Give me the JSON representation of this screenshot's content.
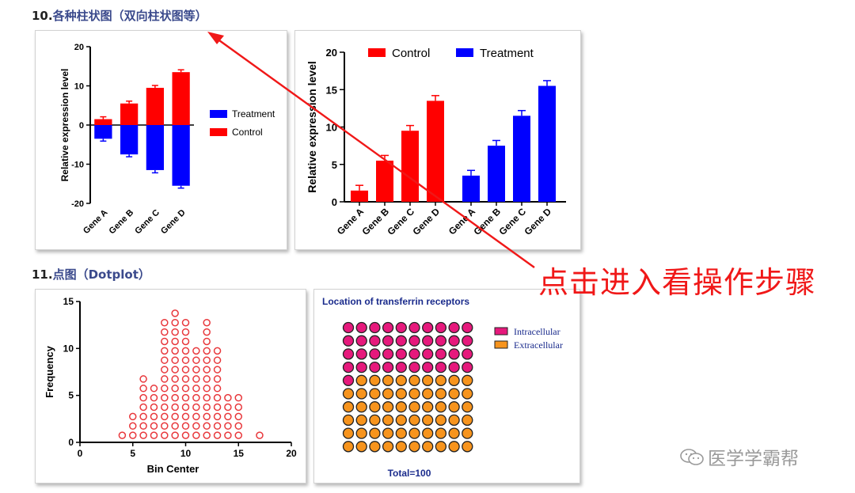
{
  "sections": {
    "s10": {
      "num": "10.",
      "label": "各种柱状图（双向柱状图等）"
    },
    "s11": {
      "num": "11.",
      "label": "点图（Dotplot）"
    }
  },
  "cta": {
    "text": "点击进入看操作步骤",
    "color": "#f01818"
  },
  "watermark": {
    "text": "医学学霸帮",
    "icon": "wechat-icon"
  },
  "colors": {
    "control": "#ff0000",
    "treatment": "#0000ff",
    "dot": "#e8383c",
    "intracellular": "#e6197c",
    "extracellular": "#f7941d",
    "title_blue": "#1a2b8c"
  },
  "chart_data": [
    {
      "type": "bar",
      "subtype": "diverging",
      "ylabel": "Relative expression level",
      "ylim": [
        -20,
        20
      ],
      "yticks": [
        "-20",
        "-10",
        "0",
        "10",
        "20"
      ],
      "categories": [
        "Gene A",
        "Gene B",
        "Gene C",
        "Gene D"
      ],
      "legend_position": "right",
      "series": [
        {
          "name": "Treatment",
          "values": [
            -3.5,
            -7.5,
            -11.5,
            -15.5
          ],
          "errors": [
            0.6,
            0.6,
            0.7,
            0.6
          ],
          "color": "#0000ff"
        },
        {
          "name": "Control",
          "values": [
            1.5,
            5.5,
            9.5,
            13.5
          ],
          "errors": [
            0.6,
            0.6,
            0.6,
            0.6
          ],
          "color": "#ff0000"
        }
      ]
    },
    {
      "type": "bar",
      "subtype": "grouped",
      "ylabel": "Relative expression level",
      "ylim": [
        0,
        20
      ],
      "yticks": [
        "0",
        "5",
        "10",
        "15",
        "20"
      ],
      "categories": [
        "Gene A",
        "Gene B",
        "Gene C",
        "Gene D"
      ],
      "legend_position": "top",
      "series": [
        {
          "name": "Control",
          "values": [
            1.5,
            5.5,
            9.5,
            13.5
          ],
          "errors": [
            0.7,
            0.7,
            0.7,
            0.7
          ],
          "color": "#ff0000"
        },
        {
          "name": "Treatment",
          "values": [
            3.5,
            7.5,
            11.5,
            15.5
          ],
          "errors": [
            0.7,
            0.7,
            0.7,
            0.7
          ],
          "color": "#0000ff"
        }
      ]
    },
    {
      "type": "scatter",
      "subtype": "dotplot",
      "xlabel": "Bin Center",
      "ylabel": "Frequency",
      "xlim": [
        0,
        20
      ],
      "ylim": [
        0,
        15
      ],
      "xticks": [
        "0",
        "5",
        "10",
        "15",
        "20"
      ],
      "yticks": [
        "0",
        "5",
        "10",
        "15"
      ],
      "bins": [
        4,
        5,
        6,
        7,
        8,
        9,
        10,
        11,
        12,
        13,
        14,
        15,
        17
      ],
      "counts": [
        1,
        3,
        7,
        6,
        13,
        14,
        13,
        10,
        13,
        10,
        5,
        5,
        1
      ]
    },
    {
      "type": "waffle",
      "title": "Location of transferrin receptors",
      "footer": "Total=100",
      "legend_position": "right",
      "categories": [
        {
          "name": "Intracellular",
          "value": 41,
          "color": "#e6197c"
        },
        {
          "name": "Extracellular",
          "value": 59,
          "color": "#f7941d"
        }
      ]
    }
  ]
}
